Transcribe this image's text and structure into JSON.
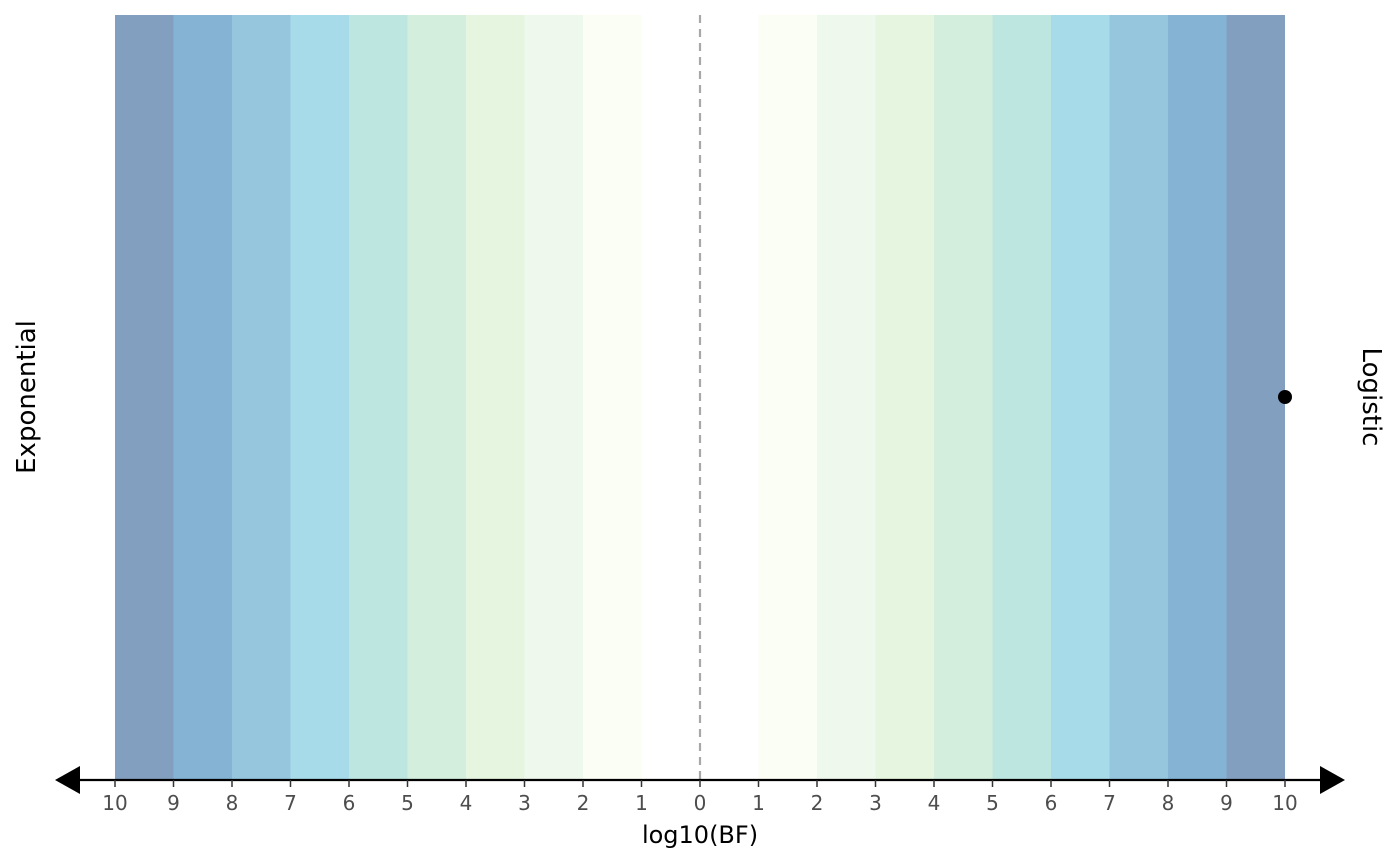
{
  "chart_data": {
    "type": "scatter",
    "xlabel": "log10(BF)",
    "left_label": "Exponential",
    "right_label": "Logistic",
    "x_ticks": [
      10,
      9,
      8,
      7,
      6,
      5,
      4,
      3,
      2,
      1,
      0,
      1,
      2,
      3,
      4,
      5,
      6,
      7,
      8,
      9,
      10
    ],
    "xlim": [
      -10,
      10
    ],
    "bands": [
      {
        "range": [
          0,
          1
        ],
        "color": "#ffffff"
      },
      {
        "range": [
          1,
          2
        ],
        "color": "#fbfef5"
      },
      {
        "range": [
          2,
          3
        ],
        "color": "#eff8ec"
      },
      {
        "range": [
          3,
          4
        ],
        "color": "#e5f5e0"
      },
      {
        "range": [
          4,
          5
        ],
        "color": "#d3eedc"
      },
      {
        "range": [
          5,
          6
        ],
        "color": "#bee6e0"
      },
      {
        "range": [
          6,
          7
        ],
        "color": "#a8dbea"
      },
      {
        "range": [
          7,
          8
        ],
        "color": "#96c5de"
      },
      {
        "range": [
          8,
          9
        ],
        "color": "#85b3d4"
      },
      {
        "range": [
          9,
          10
        ],
        "color": "#839fbf"
      }
    ],
    "point": {
      "x": 10,
      "side": "Logistic"
    },
    "reference_line_x": 0,
    "line_color_center": "#888888",
    "line_color_edge": "#000000"
  }
}
